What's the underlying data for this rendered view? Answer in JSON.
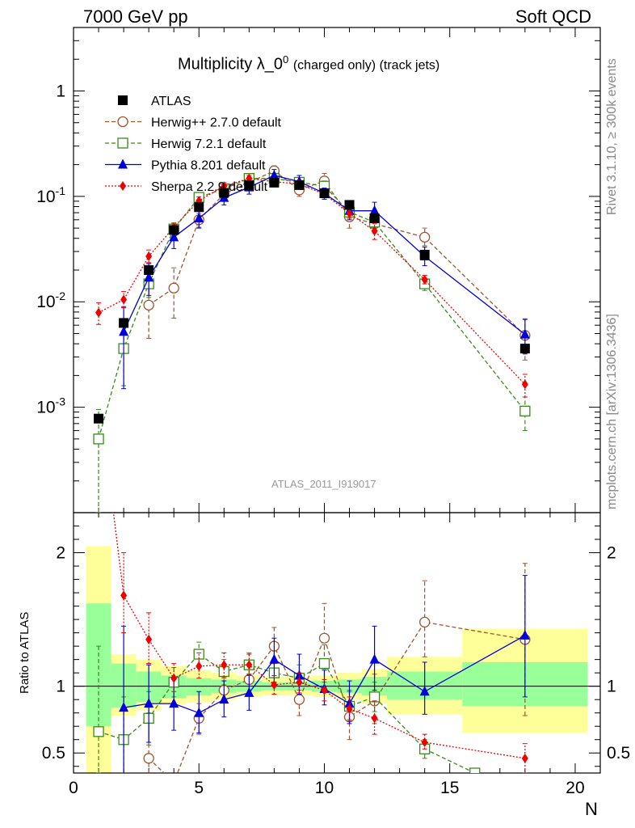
{
  "header": {
    "left": "7000 GeV pp",
    "right": "Soft QCD"
  },
  "side_labels": {
    "rivet": "Rivet 3.1.10, ≥ 300k events",
    "source": "mcplots.cern.ch [arXiv:1306.3436]"
  },
  "analysis_id": "ATLAS_2011_I919017",
  "chart_data": [
    {
      "type": "line",
      "panel": "main",
      "title_main": "Multiplicity λ_0",
      "title_sup": "0",
      "title_suffix": "(charged only) (track jets)",
      "xlabel": "N",
      "ylabel": "",
      "xlim": [
        0,
        21
      ],
      "ylim": [
        0.0001,
        4
      ],
      "yscale": "log",
      "ytick_labels": [
        "10^-3",
        "10^-2",
        "10^-1",
        "1"
      ],
      "xtick_labels": [
        "0",
        "5",
        "10",
        "15",
        "20"
      ],
      "legend_position": "top-left",
      "series": [
        {
          "name": "ATLAS",
          "color": "#000000",
          "marker": "filled-square",
          "line": "none",
          "points": [
            {
              "x": 1,
              "y": 0.00078
            },
            {
              "x": 2,
              "y": 0.0063
            },
            {
              "x": 3,
              "y": 0.02
            },
            {
              "x": 4,
              "y": 0.048
            },
            {
              "x": 5,
              "y": 0.079
            },
            {
              "x": 6,
              "y": 0.108
            },
            {
              "x": 7,
              "y": 0.128
            },
            {
              "x": 8,
              "y": 0.135
            },
            {
              "x": 9,
              "y": 0.128
            },
            {
              "x": 10,
              "y": 0.107
            },
            {
              "x": 11,
              "y": 0.083
            },
            {
              "x": 12,
              "y": 0.062
            },
            {
              "x": 14,
              "y": 0.028
            },
            {
              "x": 18,
              "y": 0.0036
            }
          ]
        },
        {
          "name": "Herwig++ 2.7.0 default",
          "color": "#a0522d",
          "marker": "open-circle",
          "line": "dashed",
          "points": [
            {
              "x": 3,
              "y": 0.0093,
              "lo": 0.0045,
              "hi": 0.016
            },
            {
              "x": 4,
              "y": 0.0135,
              "lo": 0.007,
              "hi": 0.021
            },
            {
              "x": 5,
              "y": 0.06,
              "lo": 0.051,
              "hi": 0.069
            },
            {
              "x": 6,
              "y": 0.105,
              "lo": 0.095,
              "hi": 0.115
            },
            {
              "x": 7,
              "y": 0.135,
              "lo": 0.122,
              "hi": 0.148
            },
            {
              "x": 8,
              "y": 0.175,
              "lo": 0.158,
              "hi": 0.195
            },
            {
              "x": 9,
              "y": 0.115,
              "lo": 0.1,
              "hi": 0.13
            },
            {
              "x": 10,
              "y": 0.14,
              "lo": 0.12,
              "hi": 0.165
            },
            {
              "x": 11,
              "y": 0.064,
              "lo": 0.05,
              "hi": 0.08
            },
            {
              "x": 12,
              "y": 0.055,
              "lo": 0.045,
              "hi": 0.068
            },
            {
              "x": 14,
              "y": 0.041,
              "lo": 0.034,
              "hi": 0.05
            },
            {
              "x": 18,
              "y": 0.0048,
              "lo": 0.0028,
              "hi": 0.0069
            }
          ]
        },
        {
          "name": "Herwig 7.2.1 default",
          "color": "#3a8a1a",
          "marker": "open-square",
          "line": "dashed",
          "points": [
            {
              "x": 1,
              "y": 0.0005,
              "lo": 0.0001,
              "hi": 0.00095
            },
            {
              "x": 2,
              "y": 0.0036,
              "lo": 0.0016,
              "hi": 0.0058
            },
            {
              "x": 3,
              "y": 0.0148,
              "lo": 0.011,
              "hi": 0.019
            },
            {
              "x": 4,
              "y": 0.049,
              "lo": 0.044,
              "hi": 0.055
            },
            {
              "x": 5,
              "y": 0.098,
              "lo": 0.09,
              "hi": 0.105
            },
            {
              "x": 6,
              "y": 0.118,
              "lo": 0.109,
              "hi": 0.128
            },
            {
              "x": 7,
              "y": 0.148,
              "lo": 0.138,
              "hi": 0.16
            },
            {
              "x": 8,
              "y": 0.148,
              "lo": 0.136,
              "hi": 0.16
            },
            {
              "x": 9,
              "y": 0.136,
              "lo": 0.124,
              "hi": 0.148
            },
            {
              "x": 10,
              "y": 0.125,
              "lo": 0.11,
              "hi": 0.14
            },
            {
              "x": 11,
              "y": 0.071,
              "lo": 0.062,
              "hi": 0.08
            },
            {
              "x": 12,
              "y": 0.057,
              "lo": 0.05,
              "hi": 0.064
            },
            {
              "x": 14,
              "y": 0.0148,
              "lo": 0.0128,
              "hi": 0.0168
            },
            {
              "x": 18,
              "y": 0.00092,
              "lo": 0.0006,
              "hi": 0.00125
            }
          ]
        },
        {
          "name": "Pythia 8.201 default",
          "color": "#0000dd",
          "marker": "filled-triangle",
          "line": "solid",
          "points": [
            {
              "x": 2,
              "y": 0.0052,
              "lo": 0.0015,
              "hi": 0.009
            },
            {
              "x": 3,
              "y": 0.017,
              "lo": 0.0115,
              "hi": 0.023
            },
            {
              "x": 4,
              "y": 0.041,
              "lo": 0.032,
              "hi": 0.05
            },
            {
              "x": 5,
              "y": 0.062,
              "lo": 0.05,
              "hi": 0.075
            },
            {
              "x": 6,
              "y": 0.097,
              "lo": 0.083,
              "hi": 0.112
            },
            {
              "x": 7,
              "y": 0.122,
              "lo": 0.105,
              "hi": 0.14
            },
            {
              "x": 8,
              "y": 0.158,
              "lo": 0.138,
              "hi": 0.18
            },
            {
              "x": 9,
              "y": 0.138,
              "lo": 0.12,
              "hi": 0.158
            },
            {
              "x": 10,
              "y": 0.107,
              "lo": 0.094,
              "hi": 0.12
            },
            {
              "x": 11,
              "y": 0.073,
              "lo": 0.06,
              "hi": 0.086
            },
            {
              "x": 12,
              "y": 0.073,
              "lo": 0.06,
              "hi": 0.088
            },
            {
              "x": 14,
              "y": 0.027,
              "lo": 0.022,
              "hi": 0.033
            },
            {
              "x": 18,
              "y": 0.0049,
              "lo": 0.0032,
              "hi": 0.0068
            }
          ]
        },
        {
          "name": "Sherpa 2.2.9 default",
          "color": "#ee0000",
          "marker": "filled-diamond",
          "line": "dotted",
          "points": [
            {
              "x": 1,
              "y": 0.0079,
              "lo": 0.0061,
              "hi": 0.0098
            },
            {
              "x": 2,
              "y": 0.0105,
              "lo": 0.0088,
              "hi": 0.0125
            },
            {
              "x": 3,
              "y": 0.027,
              "lo": 0.0235,
              "hi": 0.031
            },
            {
              "x": 4,
              "y": 0.051,
              "lo": 0.046,
              "hi": 0.056
            },
            {
              "x": 5,
              "y": 0.091,
              "lo": 0.084,
              "hi": 0.099
            },
            {
              "x": 6,
              "y": 0.125,
              "lo": 0.115,
              "hi": 0.135
            },
            {
              "x": 7,
              "y": 0.148,
              "lo": 0.138,
              "hi": 0.158
            },
            {
              "x": 8,
              "y": 0.138,
              "lo": 0.128,
              "hi": 0.148
            },
            {
              "x": 9,
              "y": 0.131,
              "lo": 0.121,
              "hi": 0.141
            },
            {
              "x": 10,
              "y": 0.105,
              "lo": 0.097,
              "hi": 0.113
            },
            {
              "x": 11,
              "y": 0.069,
              "lo": 0.062,
              "hi": 0.076
            },
            {
              "x": 12,
              "y": 0.047,
              "lo": 0.039,
              "hi": 0.055
            },
            {
              "x": 14,
              "y": 0.0162,
              "lo": 0.0148,
              "hi": 0.0178
            },
            {
              "x": 18,
              "y": 0.00165,
              "lo": 0.00125,
              "hi": 0.00205
            }
          ]
        }
      ]
    },
    {
      "type": "line",
      "panel": "ratio",
      "title": "",
      "xlabel": "N",
      "ylabel": "Ratio to ATLAS",
      "xlim": [
        0,
        21
      ],
      "ylim": [
        0.35,
        2.3
      ],
      "ytick_labels": [
        "0.5",
        "1",
        "2"
      ],
      "xtick_labels": [
        "0",
        "5",
        "10",
        "15",
        "20"
      ],
      "uncertainty_bands": [
        {
          "x0": 0.5,
          "x1": 1.5,
          "stat_lo": 0.7,
          "stat_hi": 1.62,
          "tot_lo": 0.35,
          "tot_hi": 2.05
        },
        {
          "x0": 1.5,
          "x1": 2.5,
          "stat_lo": 0.84,
          "stat_hi": 1.17,
          "tot_lo": 0.78,
          "tot_hi": 1.24
        },
        {
          "x0": 2.5,
          "x1": 3.5,
          "stat_lo": 0.88,
          "stat_hi": 1.11,
          "tot_lo": 0.82,
          "tot_hi": 1.2
        },
        {
          "x0": 3.5,
          "x1": 4.5,
          "stat_lo": 0.91,
          "stat_hi": 1.08,
          "tot_lo": 0.86,
          "tot_hi": 1.15
        },
        {
          "x0": 4.5,
          "x1": 5.5,
          "stat_lo": 0.93,
          "stat_hi": 1.06,
          "tot_lo": 0.88,
          "tot_hi": 1.12
        },
        {
          "x0": 5.5,
          "x1": 6.5,
          "stat_lo": 0.95,
          "stat_hi": 1.05,
          "tot_lo": 0.9,
          "tot_hi": 1.1
        },
        {
          "x0": 6.5,
          "x1": 7.5,
          "stat_lo": 0.96,
          "stat_hi": 1.04,
          "tot_lo": 0.92,
          "tot_hi": 1.08
        },
        {
          "x0": 7.5,
          "x1": 8.5,
          "stat_lo": 0.97,
          "stat_hi": 1.03,
          "tot_lo": 0.93,
          "tot_hi": 1.07
        },
        {
          "x0": 8.5,
          "x1": 9.5,
          "stat_lo": 0.97,
          "stat_hi": 1.03,
          "tot_lo": 0.93,
          "tot_hi": 1.07
        },
        {
          "x0": 9.5,
          "x1": 10.5,
          "stat_lo": 0.96,
          "stat_hi": 1.04,
          "tot_lo": 0.92,
          "tot_hi": 1.08
        },
        {
          "x0": 10.5,
          "x1": 11.5,
          "stat_lo": 0.95,
          "stat_hi": 1.05,
          "tot_lo": 0.9,
          "tot_hi": 1.1
        },
        {
          "x0": 11.5,
          "x1": 12.5,
          "stat_lo": 0.93,
          "stat_hi": 1.07,
          "tot_lo": 0.87,
          "tot_hi": 1.13
        },
        {
          "x0": 12.5,
          "x1": 15.5,
          "stat_lo": 0.9,
          "stat_hi": 1.11,
          "tot_lo": 0.79,
          "tot_hi": 1.22
        },
        {
          "x0": 15.5,
          "x1": 20.5,
          "stat_lo": 0.85,
          "stat_hi": 1.18,
          "tot_lo": 0.65,
          "tot_hi": 1.43
        }
      ],
      "series": [
        {
          "name": "Herwig++ 2.7.0 default",
          "color": "#a0522d",
          "marker": "open-circle",
          "line": "dashed",
          "points": [
            {
              "x": 3,
              "y": 0.46,
              "lo": 0.2,
              "hi": 0.8
            },
            {
              "x": 4,
              "y": 0.28
            },
            {
              "x": 5,
              "y": 0.76,
              "lo": 0.64,
              "hi": 0.87
            },
            {
              "x": 6,
              "y": 0.97,
              "lo": 0.88,
              "hi": 1.06
            },
            {
              "x": 7,
              "y": 1.05,
              "lo": 0.95,
              "hi": 1.15
            },
            {
              "x": 8,
              "y": 1.3,
              "lo": 1.17,
              "hi": 1.44
            },
            {
              "x": 9,
              "y": 0.9,
              "lo": 0.78,
              "hi": 1.02
            },
            {
              "x": 10,
              "y": 1.36,
              "lo": 1.13,
              "hi": 1.62
            },
            {
              "x": 11,
              "y": 0.77,
              "lo": 0.6,
              "hi": 0.96
            },
            {
              "x": 12,
              "y": 0.89,
              "lo": 0.72,
              "hi": 1.09
            },
            {
              "x": 14,
              "y": 1.48,
              "lo": 1.22,
              "hi": 1.79
            },
            {
              "x": 18,
              "y": 1.35,
              "lo": 0.78,
              "hi": 1.92
            }
          ]
        },
        {
          "name": "Herwig 7.2.1 default",
          "color": "#3a8a1a",
          "marker": "open-square",
          "line": "dashed",
          "points": [
            {
              "x": 1,
              "y": 0.66,
              "lo": 0.35,
              "hi": 1.3
            },
            {
              "x": 2,
              "y": 0.6,
              "lo": 0.35,
              "hi": 0.92
            },
            {
              "x": 3,
              "y": 0.76,
              "lo": 0.56,
              "hi": 0.96
            },
            {
              "x": 4,
              "y": 1.03,
              "lo": 0.92,
              "hi": 1.14
            },
            {
              "x": 5,
              "y": 1.24,
              "lo": 1.14,
              "hi": 1.33
            },
            {
              "x": 6,
              "y": 1.11,
              "lo": 1.01,
              "hi": 1.2
            },
            {
              "x": 7,
              "y": 1.16,
              "lo": 1.08,
              "hi": 1.25
            },
            {
              "x": 8,
              "y": 1.1,
              "lo": 1.01,
              "hi": 1.19
            },
            {
              "x": 9,
              "y": 1.06,
              "lo": 0.97,
              "hi": 1.16
            },
            {
              "x": 10,
              "y": 1.17,
              "lo": 1.03,
              "hi": 1.31
            },
            {
              "x": 11,
              "y": 0.85,
              "lo": 0.75,
              "hi": 0.97
            },
            {
              "x": 12,
              "y": 0.92,
              "lo": 0.81,
              "hi": 1.03
            },
            {
              "x": 14,
              "y": 0.53,
              "lo": 0.46,
              "hi": 0.6
            },
            {
              "x": 16,
              "y": 0.35
            }
          ]
        },
        {
          "name": "Pythia 8.201 default",
          "color": "#0000dd",
          "marker": "filled-triangle",
          "line": "solid",
          "points": [
            {
              "x": 2,
              "y": 0.84,
              "lo": 0.35,
              "hi": 1.45
            },
            {
              "x": 3,
              "y": 0.87,
              "lo": 0.58,
              "hi": 1.16
            },
            {
              "x": 4,
              "y": 0.87,
              "lo": 0.67,
              "hi": 1.05
            },
            {
              "x": 5,
              "y": 0.8,
              "lo": 0.65,
              "hi": 0.96
            },
            {
              "x": 6,
              "y": 0.9,
              "lo": 0.77,
              "hi": 1.04
            },
            {
              "x": 7,
              "y": 0.95,
              "lo": 0.82,
              "hi": 1.09
            },
            {
              "x": 8,
              "y": 1.2,
              "lo": 1.03,
              "hi": 1.36
            },
            {
              "x": 9,
              "y": 1.08,
              "lo": 0.94,
              "hi": 1.24
            },
            {
              "x": 10,
              "y": 0.98,
              "lo": 0.86,
              "hi": 1.12
            },
            {
              "x": 11,
              "y": 0.87,
              "lo": 0.72,
              "hi": 1.04
            },
            {
              "x": 12,
              "y": 1.2,
              "lo": 0.97,
              "hi": 1.45
            },
            {
              "x": 14,
              "y": 0.96,
              "lo": 0.79,
              "hi": 1.18
            },
            {
              "x": 18,
              "y": 1.38,
              "lo": 0.92,
              "hi": 1.83
            }
          ]
        },
        {
          "name": "Sherpa 2.2.9 default",
          "color": "#ee0000",
          "marker": "filled-diamond",
          "line": "dotted",
          "points": [
            {
              "x": 1,
              "y": 3.2
            },
            {
              "x": 2,
              "y": 1.68,
              "lo": 1.4,
              "hi": 2.0
            },
            {
              "x": 3,
              "y": 1.35,
              "lo": 1.17,
              "hi": 1.55
            },
            {
              "x": 4,
              "y": 1.06,
              "lo": 0.96,
              "hi": 1.17
            },
            {
              "x": 5,
              "y": 1.15,
              "lo": 1.06,
              "hi": 1.25
            },
            {
              "x": 6,
              "y": 1.16,
              "lo": 1.07,
              "hi": 1.25
            },
            {
              "x": 7,
              "y": 1.16,
              "lo": 1.08,
              "hi": 1.24
            },
            {
              "x": 8,
              "y": 1.01,
              "lo": 0.94,
              "hi": 1.08
            },
            {
              "x": 9,
              "y": 1.03,
              "lo": 0.95,
              "hi": 1.1
            },
            {
              "x": 10,
              "y": 0.97,
              "lo": 0.89,
              "hi": 1.05
            },
            {
              "x": 11,
              "y": 0.83,
              "lo": 0.74,
              "hi": 0.92
            },
            {
              "x": 12,
              "y": 0.76,
              "lo": 0.64,
              "hi": 0.89
            },
            {
              "x": 14,
              "y": 0.58,
              "lo": 0.53,
              "hi": 0.64
            },
            {
              "x": 18,
              "y": 0.46,
              "lo": 0.35,
              "hi": 0.57
            }
          ]
        }
      ]
    }
  ]
}
